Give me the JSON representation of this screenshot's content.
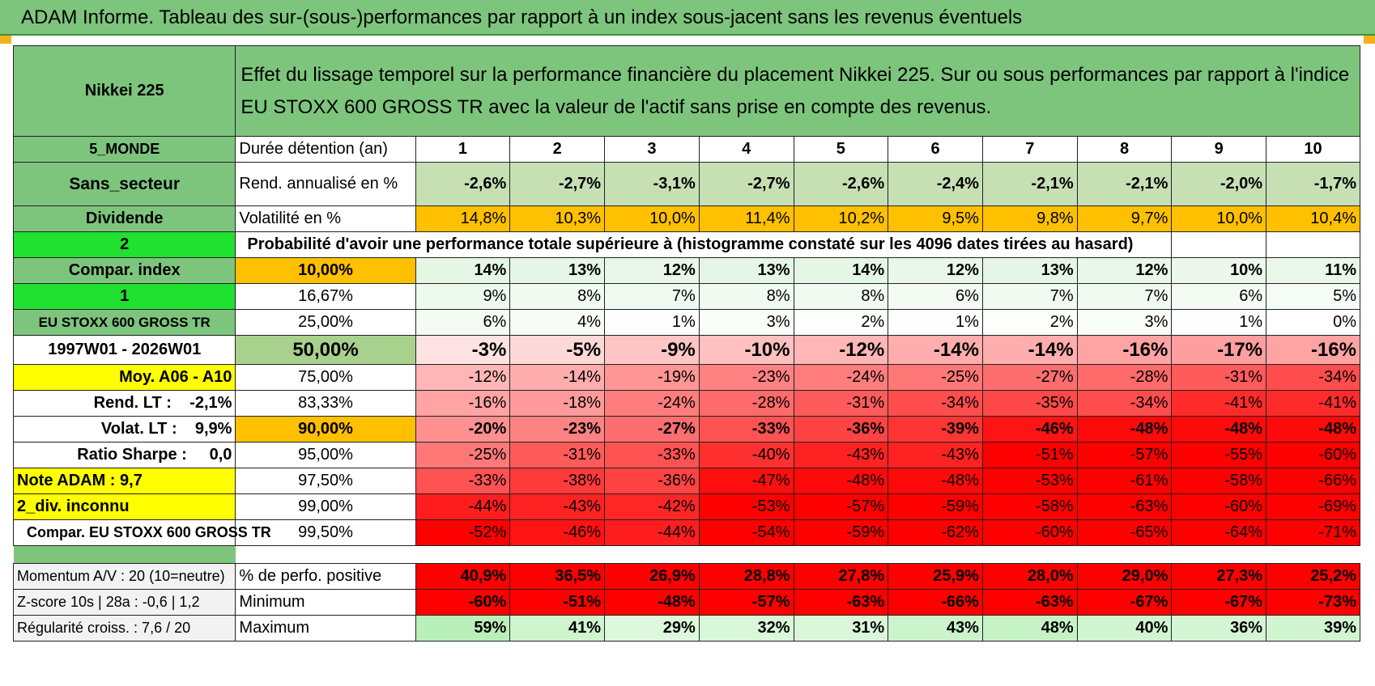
{
  "title": "ADAM Informe. Tableau des sur-(sous-)performances par rapport à un index sous-jacent sans les revenus éventuels",
  "header": {
    "name": "Nikkei 225",
    "description_line1": "Effet du lissage temporel sur la performance financière du placement Nikkei 225. Sur ou sous performances par rapport à l'indice",
    "description_line2": "EU STOXX 600 GROSS TR avec la valeur de l'actif sans prise en compte des revenus."
  },
  "left_labels": {
    "zone": "5_MONDE",
    "sector": "Sans_secteur",
    "dividend": "Dividende",
    "code": "2",
    "compar_index": "Compar. index",
    "code2": "1",
    "index_name": "EU STOXX 600 GROSS TR",
    "period": "1997W01 - 2026W01",
    "avg": "Moy. A06 - A10",
    "rend_lt": "Rend. LT :    -2,1%",
    "volat_lt": "Volat. LT :    9,9%",
    "sharpe": "Ratio Sharpe :     0,0",
    "note": "Note ADAM : 9,7",
    "div_unknown": "2_div. inconnu",
    "compar_long": "Compar. EU STOXX 600 GROSS TR",
    "momentum": "Momentum A/V : 20 (10=neutre)",
    "zscore": "Z-score 10s | 28a : -0,6 | 1,2",
    "regularite": "Régularité croiss. : 7,6 / 20"
  },
  "row_labels": {
    "duration": "Durée détention (an)",
    "rend": "Rend. annualisé en %",
    "vol": "Volatilité en %",
    "prob": "Probabilité d'avoir une performance totale supérieure à (histogramme constaté sur les 4096 dates tirées au hasard)",
    "positive": "% de perfo. positive",
    "minimum": "Minimum",
    "maximum": "Maximum"
  },
  "years": [
    "1",
    "2",
    "3",
    "4",
    "5",
    "6",
    "7",
    "8",
    "9",
    "10"
  ],
  "rend": [
    "-2,6%",
    "-2,7%",
    "-3,1%",
    "-2,7%",
    "-2,6%",
    "-2,4%",
    "-2,1%",
    "-2,1%",
    "-2,0%",
    "-1,7%"
  ],
  "vol": [
    "14,8%",
    "10,3%",
    "10,0%",
    "11,4%",
    "10,2%",
    "9,5%",
    "9,8%",
    "9,7%",
    "10,0%",
    "10,4%"
  ],
  "quantiles": [
    {
      "label": "10,00%",
      "values": [
        "14%",
        "13%",
        "12%",
        "13%",
        "14%",
        "12%",
        "13%",
        "12%",
        "10%",
        "11%"
      ]
    },
    {
      "label": "16,67%",
      "values": [
        "9%",
        "8%",
        "7%",
        "8%",
        "8%",
        "6%",
        "7%",
        "7%",
        "6%",
        "5%"
      ]
    },
    {
      "label": "25,00%",
      "values": [
        "6%",
        "4%",
        "1%",
        "3%",
        "2%",
        "1%",
        "2%",
        "3%",
        "1%",
        "0%"
      ]
    },
    {
      "label": "50,00%",
      "values": [
        "-3%",
        "-5%",
        "-9%",
        "-10%",
        "-12%",
        "-14%",
        "-14%",
        "-16%",
        "-17%",
        "-16%"
      ]
    },
    {
      "label": "75,00%",
      "values": [
        "-12%",
        "-14%",
        "-19%",
        "-23%",
        "-24%",
        "-25%",
        "-27%",
        "-28%",
        "-31%",
        "-34%"
      ]
    },
    {
      "label": "83,33%",
      "values": [
        "-16%",
        "-18%",
        "-24%",
        "-28%",
        "-31%",
        "-34%",
        "-35%",
        "-34%",
        "-41%",
        "-41%"
      ]
    },
    {
      "label": "90,00%",
      "values": [
        "-20%",
        "-23%",
        "-27%",
        "-33%",
        "-36%",
        "-39%",
        "-46%",
        "-48%",
        "-48%",
        "-48%"
      ]
    },
    {
      "label": "95,00%",
      "values": [
        "-25%",
        "-31%",
        "-33%",
        "-40%",
        "-43%",
        "-43%",
        "-51%",
        "-57%",
        "-55%",
        "-60%"
      ]
    },
    {
      "label": "97,50%",
      "values": [
        "-33%",
        "-38%",
        "-36%",
        "-47%",
        "-48%",
        "-48%",
        "-53%",
        "-61%",
        "-58%",
        "-66%"
      ]
    },
    {
      "label": "99,00%",
      "values": [
        "-44%",
        "-43%",
        "-42%",
        "-53%",
        "-57%",
        "-59%",
        "-58%",
        "-63%",
        "-60%",
        "-69%"
      ]
    },
    {
      "label": "99,50%",
      "values": [
        "-52%",
        "-46%",
        "-44%",
        "-54%",
        "-59%",
        "-62%",
        "-60%",
        "-65%",
        "-64%",
        "-71%"
      ]
    }
  ],
  "positive": [
    "40,9%",
    "36,5%",
    "26,9%",
    "28,8%",
    "27,8%",
    "25,9%",
    "28,0%",
    "29,0%",
    "27,3%",
    "25,2%"
  ],
  "minimum": [
    "-60%",
    "-51%",
    "-48%",
    "-57%",
    "-63%",
    "-66%",
    "-63%",
    "-67%",
    "-67%",
    "-73%"
  ],
  "maximum": [
    "59%",
    "41%",
    "29%",
    "32%",
    "31%",
    "43%",
    "48%",
    "40%",
    "36%",
    "39%"
  ],
  "colors": {
    "green_label": "#7dc57d",
    "orange": "#ffc000",
    "red_strong": "#ff0000",
    "green_light": "#c6e0b4"
  }
}
